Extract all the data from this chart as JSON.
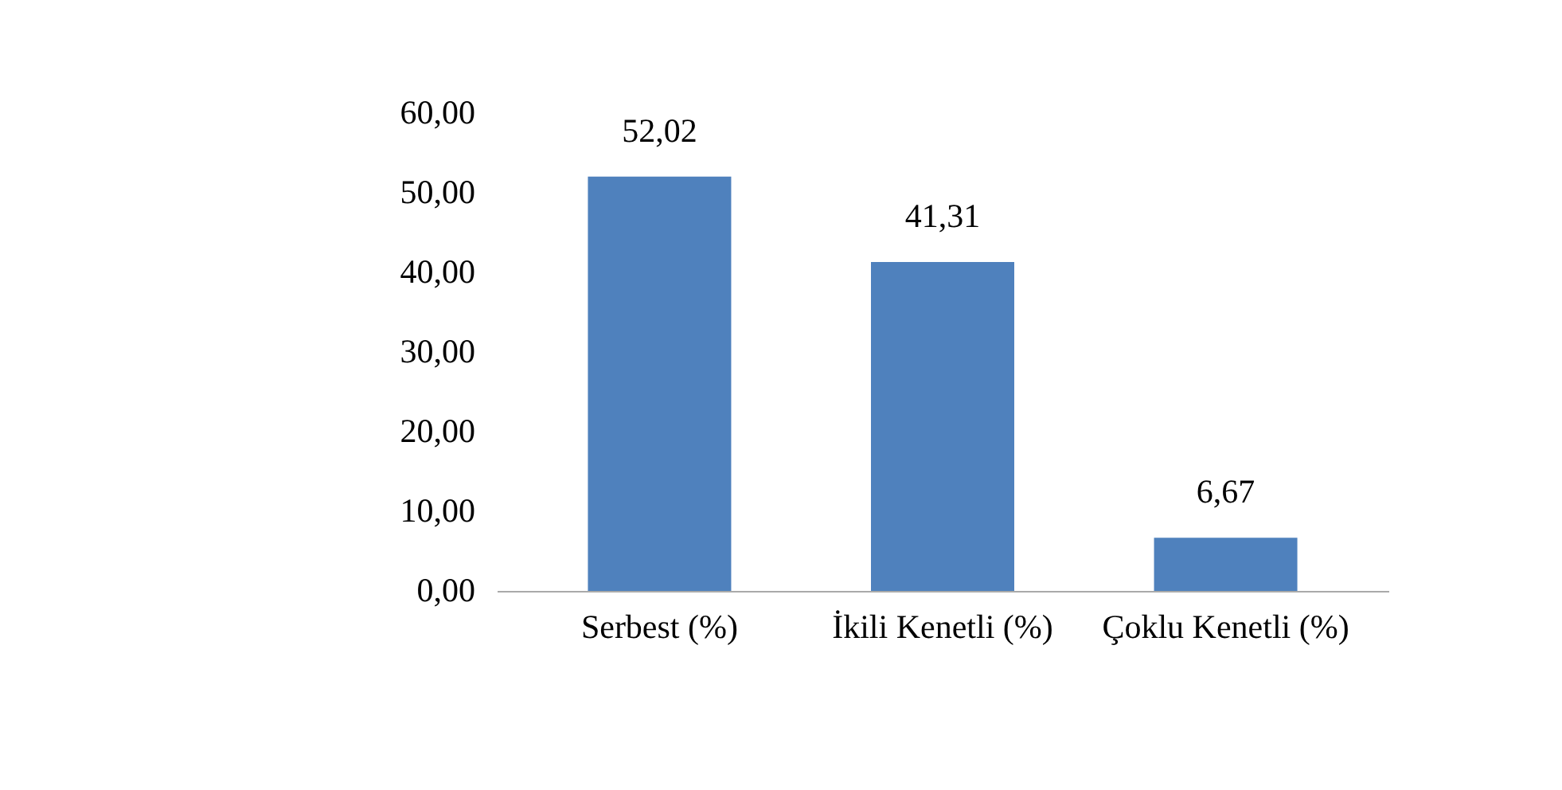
{
  "chart_data": {
    "type": "bar",
    "categories": [
      "Serbest (%)",
      "İkili Kenetli (%)",
      "Çoklu Kenetli (%)"
    ],
    "values": [
      52.02,
      41.31,
      6.67
    ],
    "value_labels": [
      "52,02",
      "41,31",
      "6,67"
    ],
    "color": "#4f81bd",
    "ylim": [
      0,
      60
    ],
    "yticks": [
      {
        "value": 0,
        "label": "0,00"
      },
      {
        "value": 10,
        "label": "10,00"
      },
      {
        "value": 20,
        "label": "20,00"
      },
      {
        "value": 30,
        "label": "30,00"
      },
      {
        "value": 40,
        "label": "40,00"
      },
      {
        "value": 50,
        "label": "50,00"
      },
      {
        "value": 60,
        "label": "60,00"
      }
    ],
    "grid": false
  }
}
